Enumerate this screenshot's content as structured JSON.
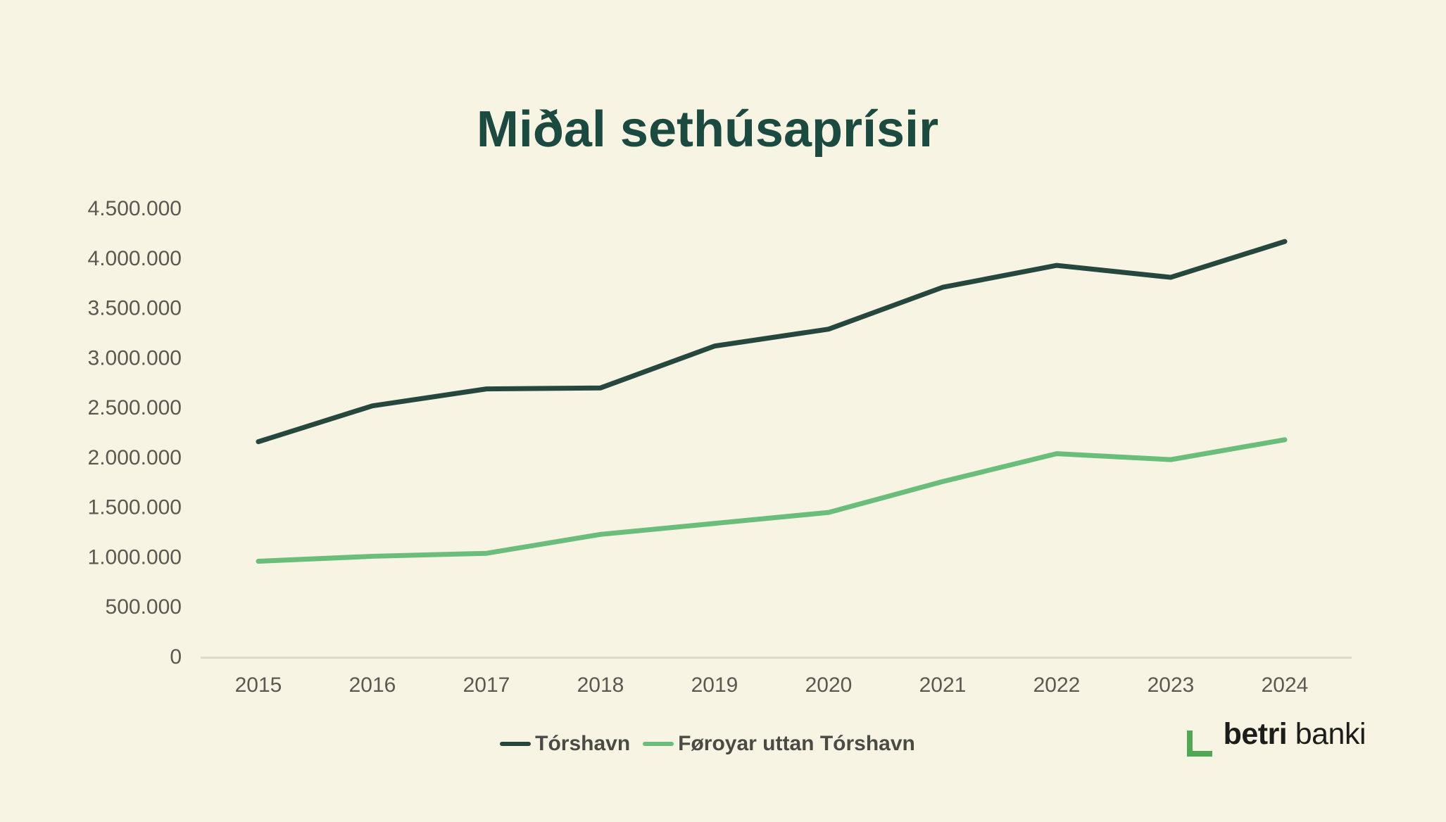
{
  "title": "Miðal sethúsaprísir",
  "colors": {
    "background": "#f8f4e4",
    "title_text": "#1b4a40",
    "axis_text": "#5b5850",
    "axis_line": "#ddd9cb",
    "legend_text": "#4b4b46",
    "series_torshavn": "#26473e",
    "series_foroyar": "#6abd7b",
    "logo_text": "#1d1d1b",
    "logo_bracket_green": "#4fa854"
  },
  "chart_data": {
    "type": "line",
    "title": "Miðal sethúsaprísir",
    "categories": [
      "2015",
      "2016",
      "2017",
      "2018",
      "2019",
      "2020",
      "2021",
      "2022",
      "2023",
      "2024"
    ],
    "series": [
      {
        "name": "Tórshavn",
        "color": "#26473e",
        "values": [
          2150000,
          2510000,
          2680000,
          2690000,
          3110000,
          3280000,
          3700000,
          3920000,
          3800000,
          4160000
        ]
      },
      {
        "name": "Føroyar uttan Tórshavn",
        "color": "#6abd7b",
        "values": [
          950000,
          1000000,
          1030000,
          1220000,
          1330000,
          1440000,
          1750000,
          2030000,
          1970000,
          2170000
        ]
      }
    ],
    "xlabel": "",
    "ylabel": "",
    "ylim": [
      0,
      4500000
    ],
    "ytick_step": 500000,
    "yticks": [
      {
        "value": 0,
        "label": "0"
      },
      {
        "value": 500000,
        "label": "500.000"
      },
      {
        "value": 1000000,
        "label": "1.000.000"
      },
      {
        "value": 1500000,
        "label": "1.500.000"
      },
      {
        "value": 2000000,
        "label": "2.000.000"
      },
      {
        "value": 2500000,
        "label": "2.500.000"
      },
      {
        "value": 3000000,
        "label": "3.000.000"
      },
      {
        "value": 3500000,
        "label": "3.500.000"
      },
      {
        "value": 4000000,
        "label": "4.000.000"
      },
      {
        "value": 4500000,
        "label": "4.500.000"
      }
    ],
    "grid": false,
    "legend_position": "bottom"
  },
  "legend": {
    "items": [
      {
        "label": "Tórshavn"
      },
      {
        "label": "Føroyar uttan Tórshavn"
      }
    ]
  },
  "logo": {
    "bold": "betri",
    "regular": "banki"
  }
}
